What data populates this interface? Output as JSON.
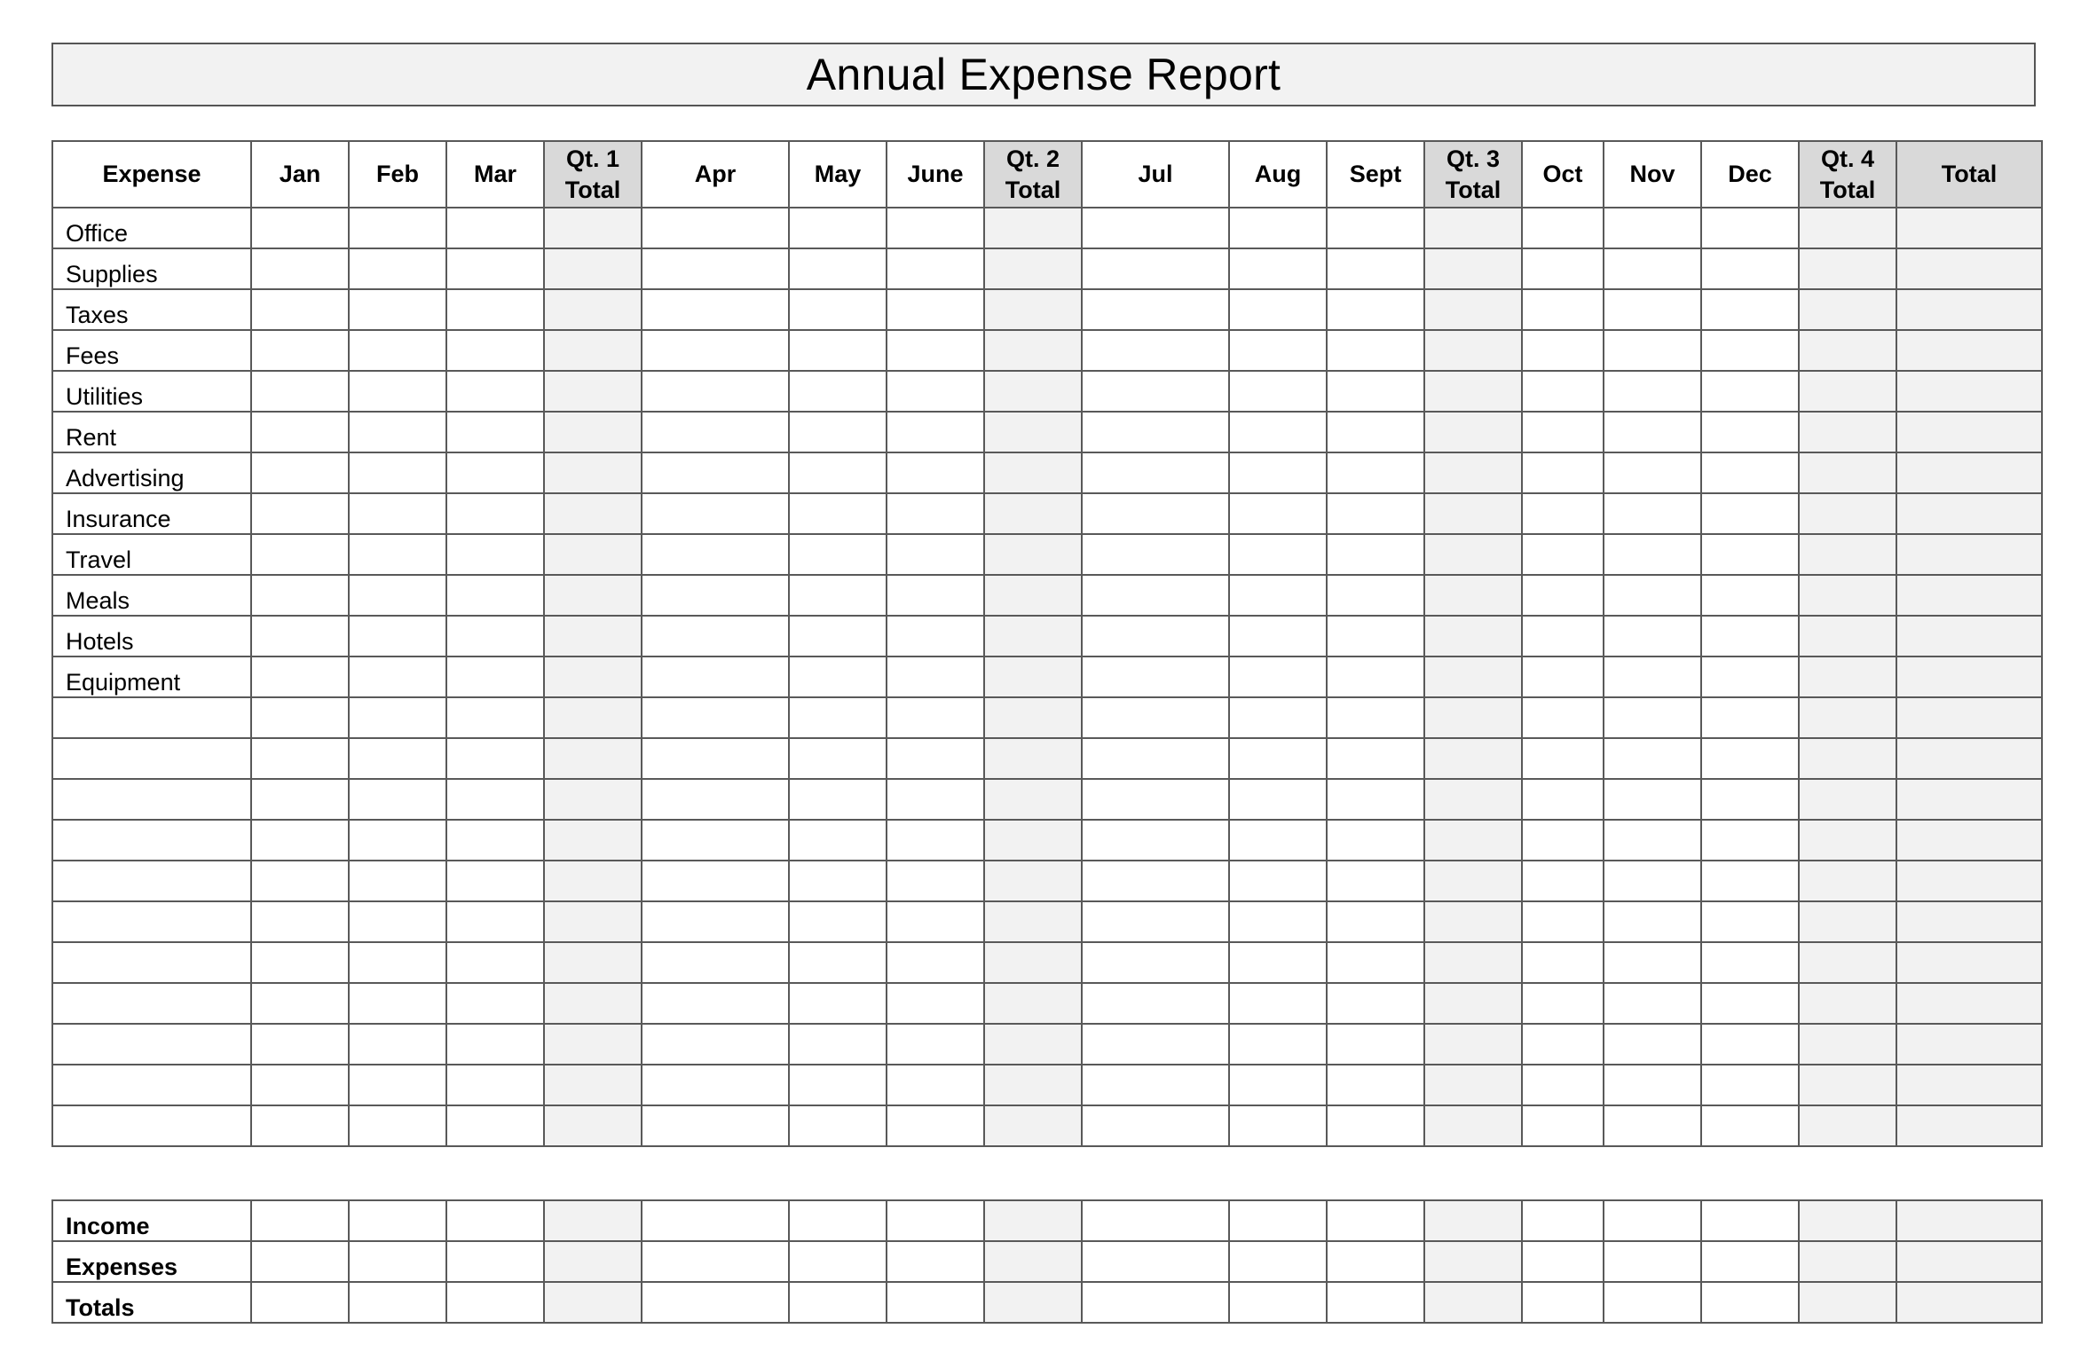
{
  "title": "Annual Expense Report",
  "columns": [
    {
      "label": "Expense",
      "kind": "label"
    },
    {
      "label": "Jan",
      "kind": "month"
    },
    {
      "label": "Feb",
      "kind": "month"
    },
    {
      "label": "Mar",
      "kind": "month"
    },
    {
      "label": "Qt. 1 Total",
      "kind": "quarter"
    },
    {
      "label": "Apr",
      "kind": "month"
    },
    {
      "label": "May",
      "kind": "month"
    },
    {
      "label": "June",
      "kind": "month"
    },
    {
      "label": "Qt. 2 Total",
      "kind": "quarter"
    },
    {
      "label": "Jul",
      "kind": "month"
    },
    {
      "label": "Aug",
      "kind": "month"
    },
    {
      "label": "Sept",
      "kind": "month"
    },
    {
      "label": "Qt. 3 Total",
      "kind": "quarter"
    },
    {
      "label": "Oct",
      "kind": "month"
    },
    {
      "label": "Nov",
      "kind": "month"
    },
    {
      "label": "Dec",
      "kind": "month"
    },
    {
      "label": "Qt. 4 Total",
      "kind": "quarter"
    },
    {
      "label": "Total",
      "kind": "total"
    }
  ],
  "expense_rows": [
    "Office",
    "Supplies",
    "Taxes",
    "Fees",
    "Utilities",
    "Rent",
    "Advertising",
    "Insurance",
    "Travel",
    "Meals",
    "Hotels",
    "Equipment",
    "",
    "",
    "",
    "",
    "",
    "",
    "",
    "",
    "",
    "",
    ""
  ],
  "summary_rows": [
    "Income",
    "Expenses",
    "Totals"
  ],
  "colors": {
    "quarter_cell": "#f2f2f2",
    "header_shade": "#d9d9d9",
    "border": "#595959"
  }
}
